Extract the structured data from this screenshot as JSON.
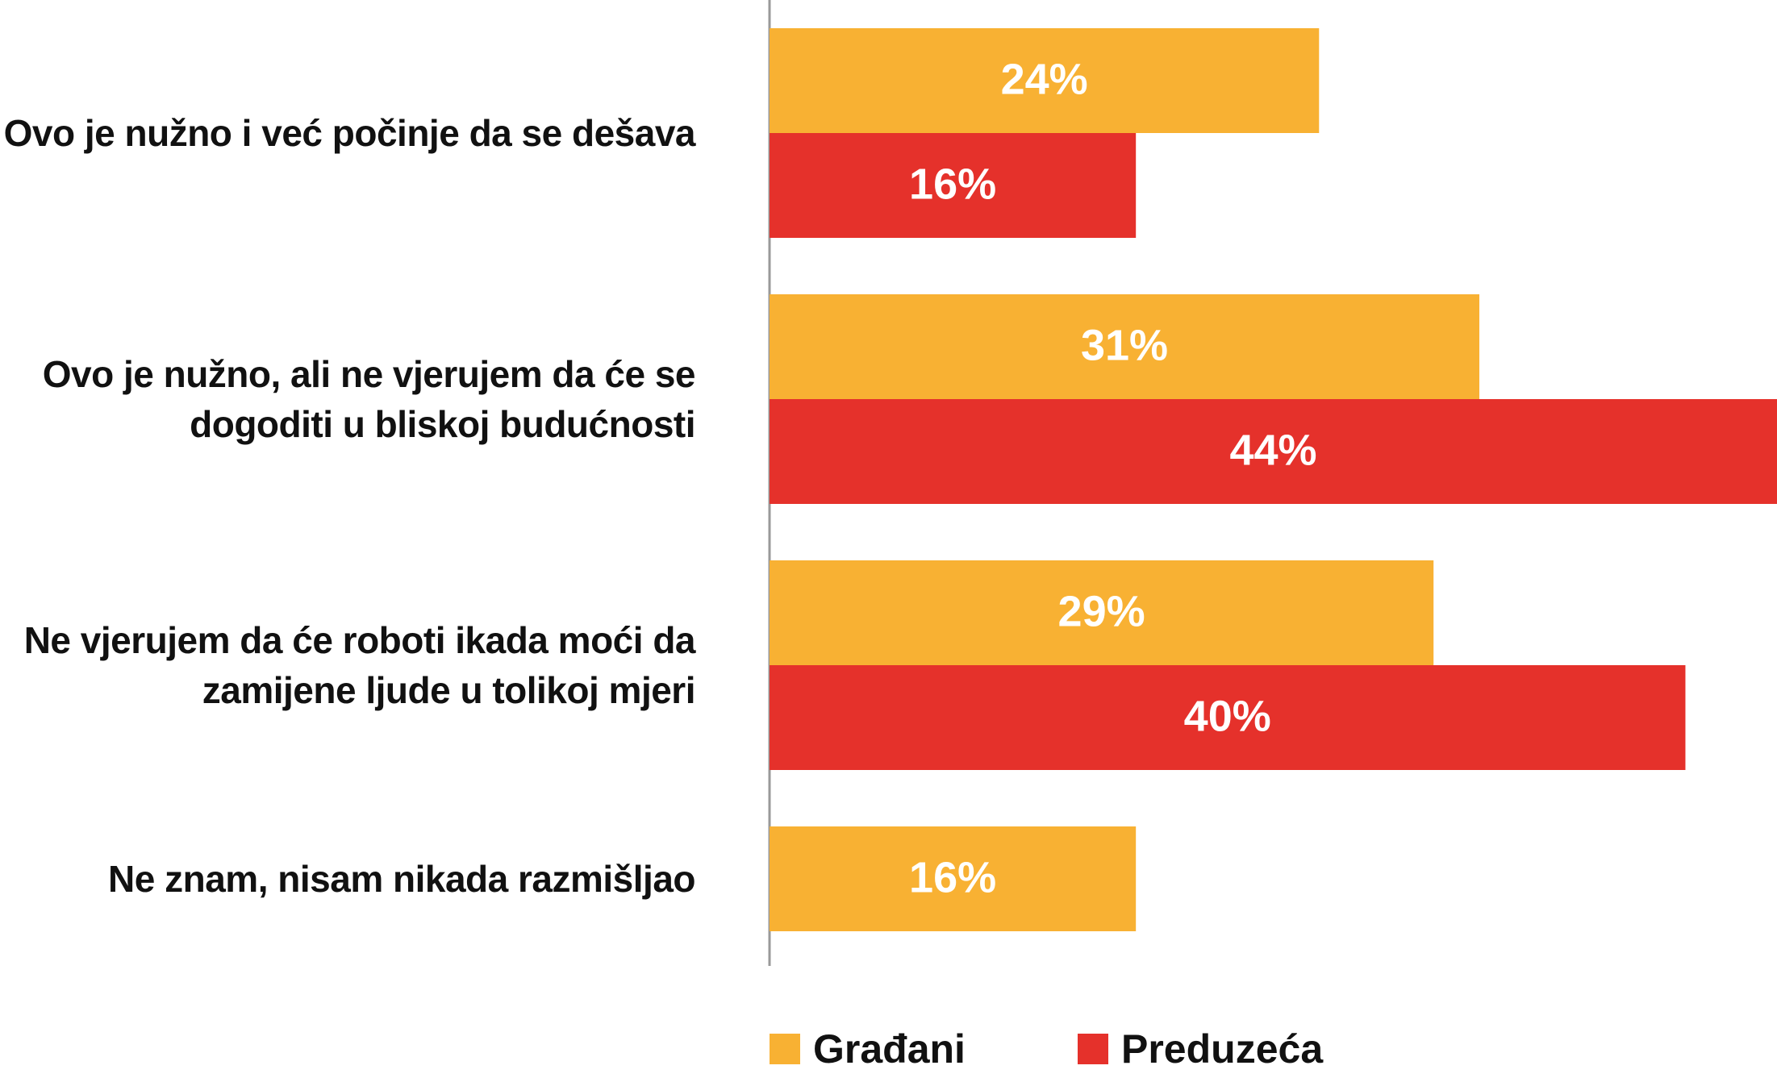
{
  "chart_data": {
    "type": "bar",
    "orientation": "horizontal",
    "categories": [
      "Ovo je nužno i već počinje da se dešava",
      "Ovo je nužno, ali ne vjerujem da će se dogoditi u bliskoj budućnosti",
      "Ne vjerujem da će roboti ikada moći da zamijene ljude u tolikoj mjeri",
      "Ne znam, nisam nikada razmišljao"
    ],
    "series": [
      {
        "name": "Građani",
        "color": "#f8b133",
        "values": [
          24,
          31,
          29,
          16
        ],
        "value_labels": [
          "24%",
          "31%",
          "29%",
          "16%"
        ]
      },
      {
        "name": "Preduzeća",
        "color": "#e5312b",
        "values": [
          16,
          44,
          40,
          null
        ],
        "value_labels": [
          "16%",
          "44%",
          "40%",
          null
        ]
      }
    ]
  }
}
